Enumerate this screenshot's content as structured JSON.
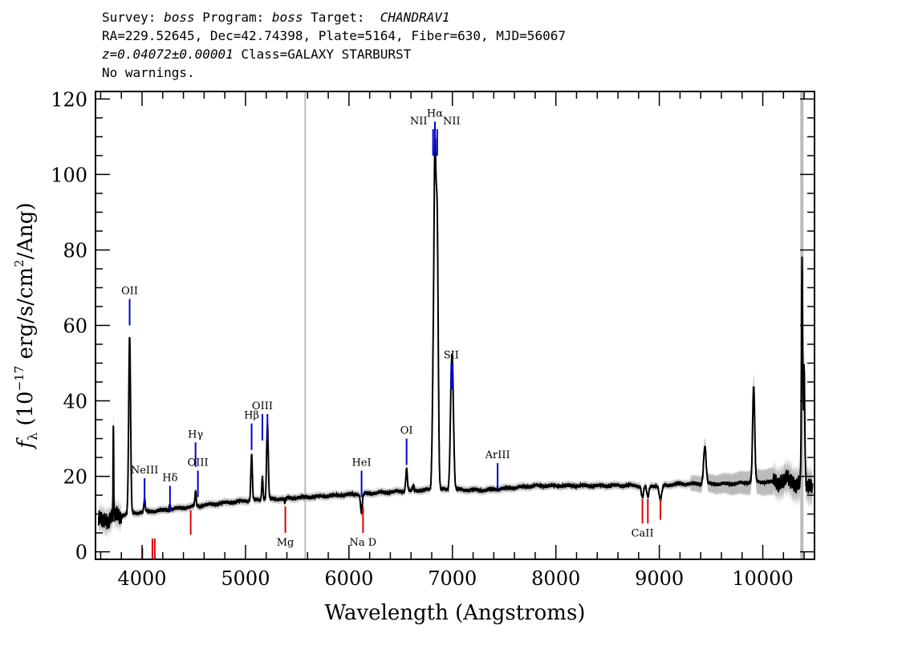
{
  "header": {
    "line1_pre1": "Survey: ",
    "survey": "boss",
    "line1_pre2": " Program: ",
    "program": "boss",
    "line1_pre3": " Target:  ",
    "target": "CHANDRAV1",
    "line2": "RA=229.52645, Dec=42.74398, Plate=5164, Fiber=630, MJD=56067",
    "redshift": "z=0.04072±0.00001",
    "class_text": " Class=GALAXY STARBURST",
    "line4": "No warnings."
  },
  "chart_data": {
    "type": "line",
    "xlabel": "Wavelength (Angstroms)",
    "ylabel": "f_λ (10^-17 erg/s/cm^2/Ang)",
    "ylabel_parts": {
      "f": "f",
      "sub": "λ",
      "pre": " (10",
      "exp1": "−17",
      "mid": " erg/s/cm",
      "exp2": "2",
      "post": "/Ang)"
    },
    "xlim": [
      3550,
      10500
    ],
    "ylim": [
      -2,
      122
    ],
    "xticks": [
      4000,
      5000,
      6000,
      7000,
      8000,
      9000,
      10000
    ],
    "yticks": [
      0,
      20,
      40,
      60,
      80,
      100,
      120
    ],
    "grid": false,
    "colors": {
      "spectrum": "#000000",
      "error_band": "#bbbbbb",
      "emission": "#0000cc",
      "absorption": "#dd0000",
      "sky": "#bbbbbb"
    },
    "sky_lines": [
      5577,
      10378
    ],
    "continuum": [
      [
        3580,
        8
      ],
      [
        3700,
        9
      ],
      [
        3850,
        10
      ],
      [
        4000,
        10.5
      ],
      [
        4200,
        11
      ],
      [
        4500,
        12
      ],
      [
        4800,
        13
      ],
      [
        5000,
        13.5
      ],
      [
        5300,
        14
      ],
      [
        5600,
        14.5
      ],
      [
        5900,
        15
      ],
      [
        6200,
        15.5
      ],
      [
        6500,
        16
      ],
      [
        6800,
        16.5
      ],
      [
        7000,
        16.5
      ],
      [
        7300,
        16.3
      ],
      [
        7600,
        17
      ],
      [
        7800,
        17.5
      ],
      [
        8100,
        17.5
      ],
      [
        8400,
        17.5
      ],
      [
        8700,
        17.6
      ],
      [
        8850,
        17.4
      ],
      [
        9000,
        17.5
      ],
      [
        9200,
        18
      ],
      [
        9400,
        18
      ],
      [
        9700,
        18
      ],
      [
        9900,
        18.5
      ],
      [
        10100,
        18.5
      ],
      [
        10250,
        19
      ],
      [
        10350,
        18
      ],
      [
        10500,
        18
      ]
    ],
    "emission_features": [
      {
        "x": 3880,
        "peak": 57,
        "w": 9
      },
      {
        "x": 3723,
        "peak": 33,
        "w": 3
      },
      {
        "x": 4024,
        "peak": 14,
        "w": 6
      },
      {
        "x": 4270,
        "peak": 12.5,
        "w": 6
      },
      {
        "x": 4517,
        "peak": 16,
        "w": 6
      },
      {
        "x": 5059,
        "peak": 26,
        "w": 7
      },
      {
        "x": 5163,
        "peak": 20,
        "w": 6
      },
      {
        "x": 5212,
        "peak": 34,
        "w": 8
      },
      {
        "x": 5380,
        "peak": 13,
        "w": 5
      },
      {
        "x": 6122,
        "peak": 13,
        "w": 6
      },
      {
        "x": 6557,
        "peak": 22,
        "w": 8
      },
      {
        "x": 6622,
        "peak": 17.5,
        "w": 6
      },
      {
        "x": 6812,
        "peak": 38,
        "w": 9
      },
      {
        "x": 6831,
        "peak": 101,
        "w": 10
      },
      {
        "x": 6853,
        "peak": 84,
        "w": 10
      },
      {
        "x": 6989,
        "peak": 39,
        "w": 11
      },
      {
        "x": 7003,
        "peak": 38,
        "w": 11
      },
      {
        "x": 9440,
        "peak": 28,
        "w": 12
      },
      {
        "x": 9912,
        "peak": 44,
        "w": 10
      },
      {
        "x": 10380,
        "peak": 76,
        "w": 6
      },
      {
        "x": 10400,
        "peak": 48,
        "w": 6
      }
    ],
    "absorption_features": [
      {
        "x": 6120,
        "depth": 3,
        "w": 10
      },
      {
        "x": 8837,
        "depth": 3,
        "w": 10
      },
      {
        "x": 8889,
        "depth": 3,
        "w": 10
      },
      {
        "x": 9011,
        "depth": 4,
        "w": 12
      }
    ],
    "emission_lines": [
      {
        "label": "OII",
        "x": 3880,
        "y0": 60,
        "y1": 67
      },
      {
        "label": "NeIII",
        "x": 4024,
        "y0": 12.5,
        "y1": 19.5
      },
      {
        "label": "Hδ",
        "x": 4270,
        "y0": 10.5,
        "y1": 17.5
      },
      {
        "label": "Hγ",
        "x": 4517,
        "y0": 22.5,
        "y1": 29
      },
      {
        "label": "OIII",
        "x": 4540,
        "y0": 14.5,
        "y1": 21.5
      },
      {
        "label": "Hβ",
        "x": 5059,
        "y0": 27,
        "y1": 34
      },
      {
        "label": "OIII",
        "x": 5163,
        "y0": 29.5,
        "y1": 36.5
      },
      {
        "label": "",
        "x": 5212,
        "y0": 29.5,
        "y1": 36.5
      },
      {
        "label": "HeI",
        "x": 6122,
        "y0": 14.5,
        "y1": 21.5
      },
      {
        "label": "OI",
        "x": 6557,
        "y0": 23,
        "y1": 30
      },
      {
        "label": "NII",
        "x": 6813,
        "y0": 105,
        "y1": 112
      },
      {
        "label": "Hα",
        "x": 6831,
        "y0": 105,
        "y1": 114
      },
      {
        "label": "NII",
        "x": 6853,
        "y0": 105,
        "y1": 112
      },
      {
        "label": "SII",
        "x": 6989,
        "y0": 43,
        "y1": 50
      },
      {
        "label": "",
        "x": 7003,
        "y0": 43,
        "y1": 50
      },
      {
        "label": "ArIII",
        "x": 7437,
        "y0": 16.5,
        "y1": 23.5
      }
    ],
    "absorption_lines": [
      {
        "label": "",
        "x": 4003,
        "y0": -2,
        "y1": 1
      },
      {
        "label": "",
        "x": 4100,
        "y0": -2,
        "y1": 3.5
      },
      {
        "label": "",
        "x": 4123,
        "y0": -2,
        "y1": 3.5
      },
      {
        "label": "",
        "x": 4470,
        "y0": 4.5,
        "y1": 11
      },
      {
        "label": "Mg",
        "x": 5385,
        "y0": 5,
        "y1": 12
      },
      {
        "label": "Na D",
        "x": 6136,
        "y0": 5,
        "y1": 12
      },
      {
        "label": "CaII",
        "x": 8837,
        "y0": 7.5,
        "y1": 14
      },
      {
        "label": "",
        "x": 8889,
        "y0": 7.5,
        "y1": 14
      },
      {
        "label": "",
        "x": 9011,
        "y0": 8.5,
        "y1": 14
      }
    ]
  }
}
